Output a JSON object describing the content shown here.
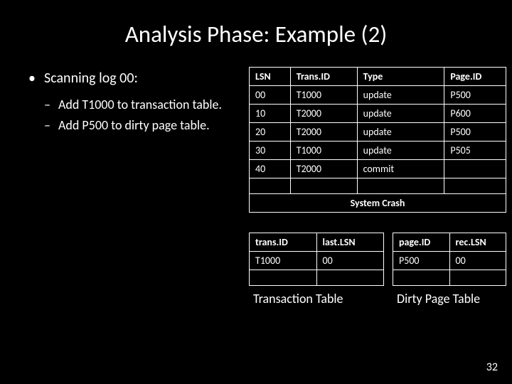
{
  "title": "Analysis Phase: Example (2)",
  "bullet": "Scanning log 00:",
  "subs": [
    "Add T1000 to transaction table.",
    "Add P500 to dirty page table."
  ],
  "log": {
    "headers": [
      "LSN",
      "Trans.ID",
      "Type",
      "Page.ID"
    ],
    "rows": [
      [
        "00",
        "T1000",
        "update",
        "P500"
      ],
      [
        "10",
        "T2000",
        "update",
        "P600"
      ],
      [
        "20",
        "T2000",
        "update",
        "P500"
      ],
      [
        "30",
        "T1000",
        "update",
        "P505"
      ],
      [
        "40",
        "T2000",
        "commit",
        ""
      ]
    ],
    "crash": "System Crash"
  },
  "trans": {
    "headers": [
      "trans.ID",
      "last.LSN"
    ],
    "rows": [
      [
        "T1000",
        "00"
      ]
    ],
    "label": "Transaction Table"
  },
  "dirty": {
    "headers": [
      "page.ID",
      "rec.LSN"
    ],
    "rows": [
      [
        "P500",
        "00"
      ]
    ],
    "label": "Dirty Page Table"
  },
  "slideNum": "32"
}
